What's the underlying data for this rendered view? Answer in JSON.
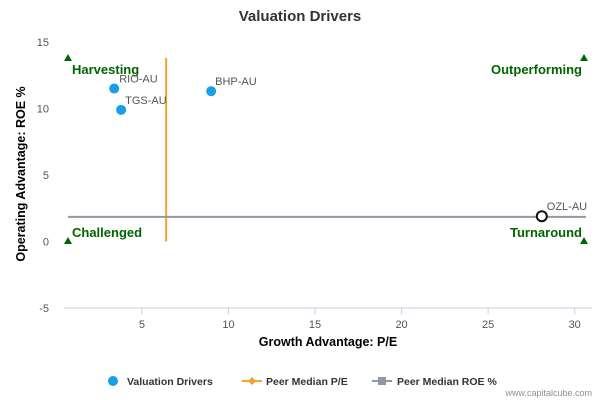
{
  "chart_data": {
    "type": "scatter",
    "title": "Valuation Drivers",
    "xlabel": "Growth Advantage: P/E",
    "ylabel": "Operating Advantage: ROE %",
    "xlim": [
      0.5,
      31
    ],
    "ylim": [
      -5,
      15
    ],
    "xticks": [
      5,
      10,
      15,
      20,
      25,
      30
    ],
    "yticks": [
      -5,
      0,
      5,
      10,
      15
    ],
    "grid": false,
    "legend_position": "bottom",
    "series": [
      {
        "name": "Valuation Drivers",
        "color": "#1a9ee6",
        "points": [
          {
            "label": "RIO-AU",
            "x": 3.4,
            "y": 11.5
          },
          {
            "label": "TGS-AU",
            "x": 3.8,
            "y": 9.9
          },
          {
            "label": "BHP-AU",
            "x": 9.0,
            "y": 11.3
          },
          {
            "label": "OZL-AU",
            "x": 28.1,
            "y": 1.9,
            "highlighted": true
          }
        ]
      },
      {
        "name": "Peer Median P/E",
        "color": "#f7a12c",
        "x": 6.4,
        "y_range": [
          0,
          13.8
        ]
      },
      {
        "name": "Peer Median ROE %",
        "color": "#9098a3",
        "y": 1.85,
        "x_range": [
          0.5,
          31
        ]
      }
    ],
    "quadrants": {
      "top_left": "Harvesting",
      "top_right": "Outperforming",
      "bottom_left": "Challenged",
      "bottom_right": "Turnaround"
    }
  },
  "credit": "www.capitalcube.com",
  "colors": {
    "quadrant_text": "#006400",
    "corner_marker": "#006400",
    "axis_line": "#c0d0e0"
  }
}
